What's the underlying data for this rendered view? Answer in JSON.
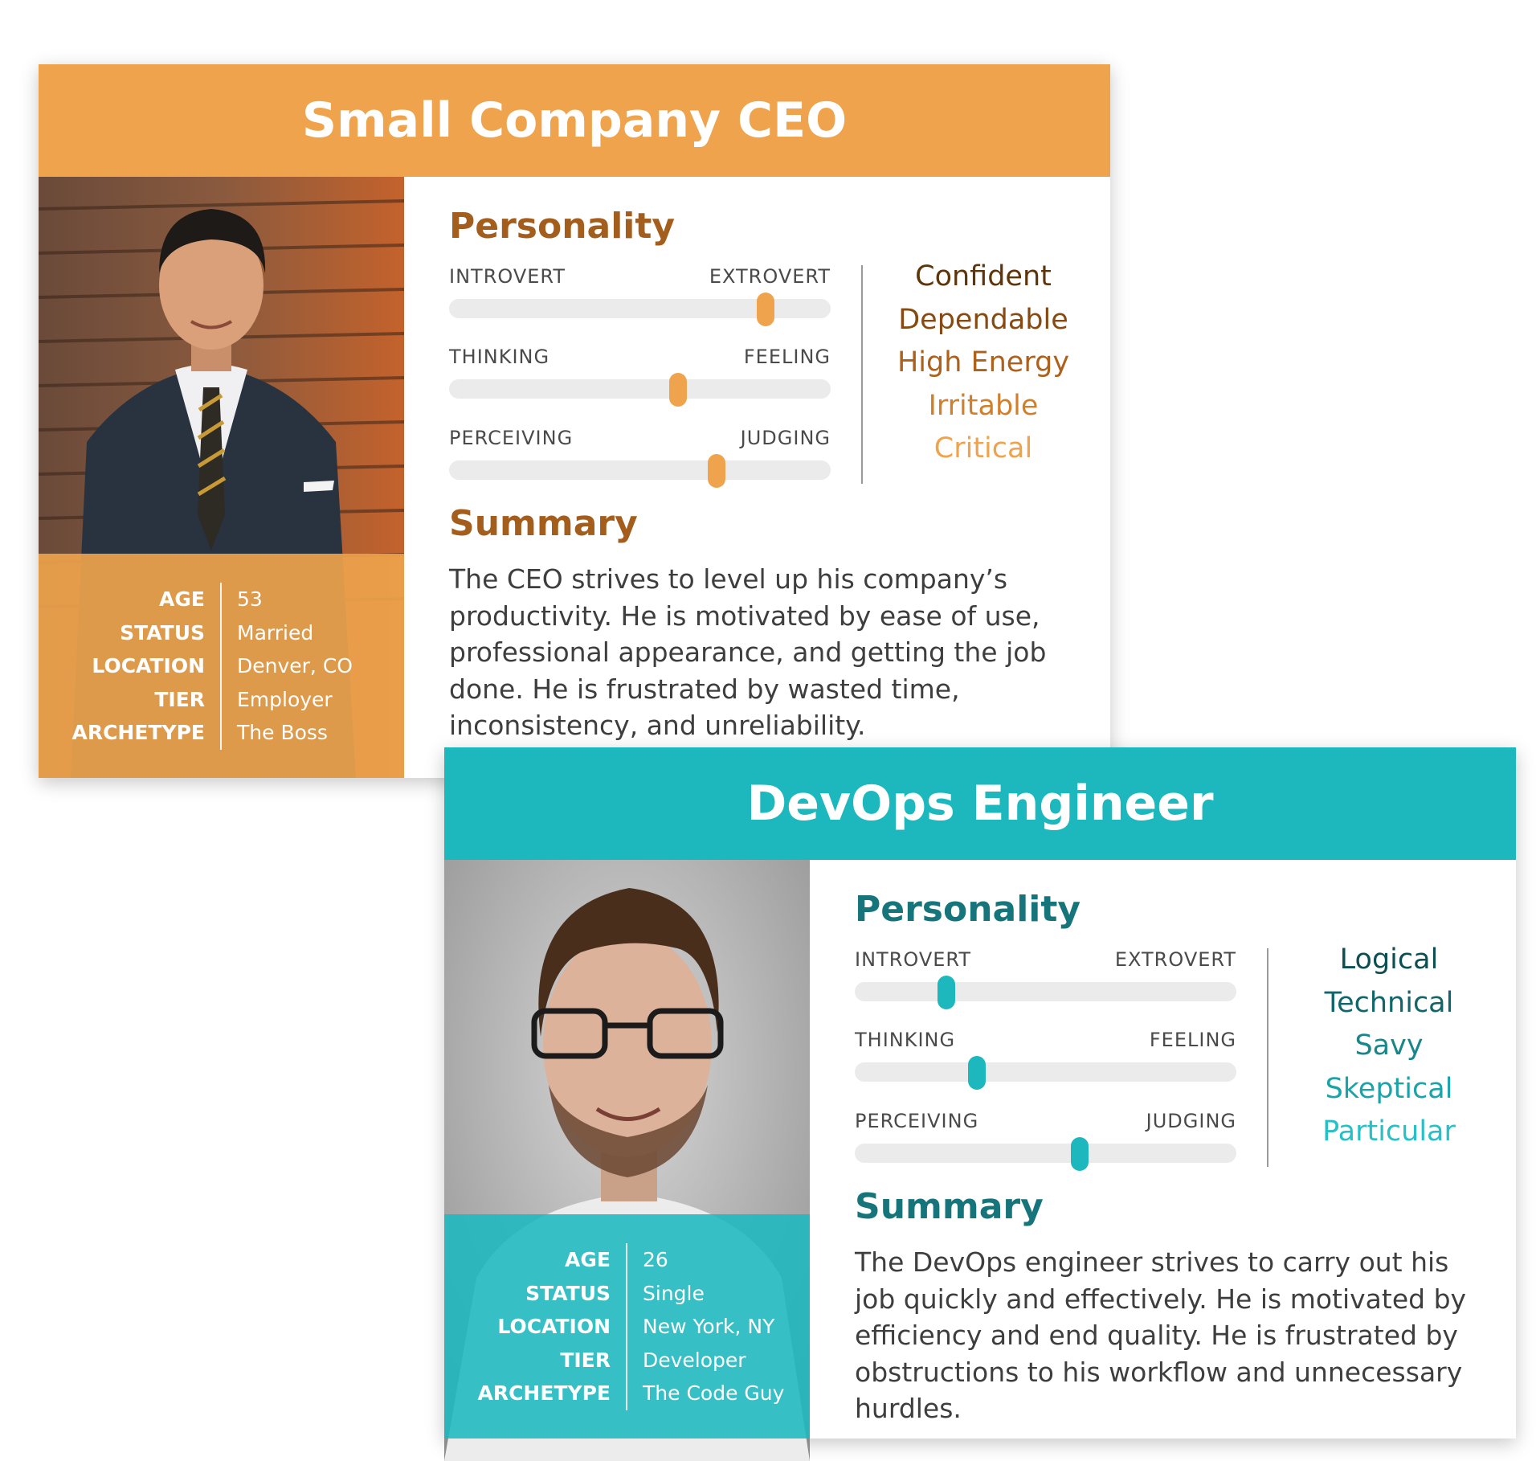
{
  "cards": [
    {
      "id": "ceo",
      "title": "Small Company CEO",
      "accent_color": "#eea34c",
      "heading_color": "#a35d1c",
      "photo_icon": "photo-of-man-in-suit",
      "info": {
        "labels": [
          "AGE",
          "STATUS",
          "LOCATION",
          "TIER",
          "ARCHETYPE"
        ],
        "values": [
          "53",
          "Married",
          "Denver, CO",
          "Employer",
          "The Boss"
        ]
      },
      "personality_title": "Personality",
      "sliders": [
        {
          "left": "INTROVERT",
          "right": "EXTROVERT",
          "value": 0.83
        },
        {
          "left": "THINKING",
          "right": "FEELING",
          "value": 0.6
        },
        {
          "left": "PERCEIVING",
          "right": "JUDGING",
          "value": 0.7
        }
      ],
      "adjectives": [
        {
          "text": "Confident",
          "color": "#5e340b"
        },
        {
          "text": "Dependable",
          "color": "#874a12"
        },
        {
          "text": "High Energy",
          "color": "#ad611b"
        },
        {
          "text": "Irritable",
          "color": "#d07f2b"
        },
        {
          "text": "Critical",
          "color": "#eea34c"
        }
      ],
      "summary_title": "Summary",
      "summary": "The CEO strives to level up his company’s productivity.  He is motivated by ease of use, professional appearance, and getting the job done.  He is frustrated by wasted time, inconsistency, and unreliability."
    },
    {
      "id": "devops",
      "title": "DevOps Engineer",
      "accent_color": "#1cb8be",
      "heading_color": "#16757a",
      "photo_icon": "photo-of-man-with-glasses",
      "info": {
        "labels": [
          "AGE",
          "STATUS",
          "LOCATION",
          "TIER",
          "ARCHETYPE"
        ],
        "values": [
          "26",
          "Single",
          "New York, NY",
          "Developer",
          "The Code Guy"
        ]
      },
      "personality_title": "Personality",
      "sliders": [
        {
          "left": "INTROVERT",
          "right": "EXTROVERT",
          "value": 0.24
        },
        {
          "left": "THINKING",
          "right": "FEELING",
          "value": 0.32
        },
        {
          "left": "PERCEIVING",
          "right": "JUDGING",
          "value": 0.59
        }
      ],
      "adjectives": [
        {
          "text": "Logical",
          "color": "#0d4e53"
        },
        {
          "text": "Technical",
          "color": "#12656a"
        },
        {
          "text": "Savy",
          "color": "#17878c"
        },
        {
          "text": "Skeptical",
          "color": "#1aa4aa"
        },
        {
          "text": "Particular",
          "color": "#27c0c6"
        }
      ],
      "summary_title": "Summary",
      "summary": "The DevOps engineer strives to carry out his job quickly and effectively.  He is motivated by efficiency and end quality.  He is frustrated by obstructions to his workflow and unnecessary hurdles."
    }
  ]
}
